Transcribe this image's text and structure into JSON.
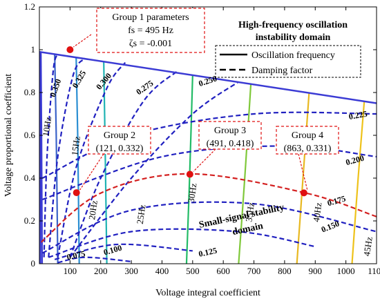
{
  "chart_data": {
    "type": "line",
    "title": "",
    "xlabel": "Voltage integral coefficient",
    "ylabel": "Voltage proportional coefficient",
    "xlim": [
      0,
      1100
    ],
    "ylim": [
      0,
      1.2
    ],
    "xticks": [
      "100",
      "200",
      "300",
      "400",
      "500",
      "600",
      "700",
      "800",
      "900",
      "1000",
      "1100"
    ],
    "yticks": [
      "0",
      "0.2",
      "0.4",
      "0.6",
      "0.8",
      "1",
      "1.2"
    ],
    "grid": false,
    "legend": {
      "position": "top-right",
      "title_line1": "High-frequency oscillation",
      "title_line2": "instability domain",
      "items": [
        {
          "label": "Oscillation frequency",
          "style": "solid"
        },
        {
          "label": "Damping factor",
          "style": "dashed"
        }
      ]
    },
    "boundary": {
      "x": [
        0,
        1100
      ],
      "y": [
        0.99,
        0.75
      ],
      "color": "#3b3bd4"
    },
    "frequency_contours": [
      {
        "label": "10Hz",
        "color": "#3b3bd4",
        "points": [
          [
            5,
            0.99
          ],
          [
            7,
            0.6
          ],
          [
            9,
            0.0
          ]
        ],
        "label_at": [
          28,
          0.64
        ],
        "label_rotate": -82
      },
      {
        "label": "15Hz",
        "color": "#3a62c8",
        "points": [
          [
            50,
            0.98
          ],
          [
            55,
            0.6
          ],
          [
            60,
            0.0
          ]
        ],
        "label_at": [
          122,
          0.55
        ],
        "label_rotate": -82
      },
      {
        "label": "20Hz",
        "color": "#2a8ed2",
        "points": [
          [
            120,
            0.965
          ],
          [
            125,
            0.6
          ],
          [
            130,
            0.0
          ]
        ],
        "label_at": [
          178,
          0.25
        ],
        "label_rotate": -82
      },
      {
        "label": "25Hz",
        "color": "#1fb3b3",
        "points": [
          [
            210,
            0.945
          ],
          [
            215,
            0.5
          ],
          [
            220,
            0.0
          ]
        ],
        "label_at": [
          335,
          0.23
        ],
        "label_rotate": -82
      },
      {
        "label": "30Hz",
        "color": "#22bb66",
        "points": [
          [
            500,
            0.88
          ],
          [
            490,
            0.4
          ],
          [
            480,
            0.0
          ]
        ],
        "label_at": [
          502,
          0.33
        ],
        "label_rotate": -82
      },
      {
        "label": "35Hz",
        "color": "#7fc83a",
        "points": [
          [
            690,
            0.84
          ],
          [
            670,
            0.4
          ],
          [
            650,
            0.0
          ]
        ],
        "label_at": [
          690,
          0.24
        ],
        "label_rotate": -82
      },
      {
        "label": "40Hz",
        "color": "#e8b820",
        "points": [
          [
            880,
            0.8
          ],
          [
            860,
            0.4
          ],
          [
            840,
            0.0
          ]
        ],
        "label_at": [
          910,
          0.24
        ],
        "label_rotate": -82
      },
      {
        "label": "45Hz",
        "color": "#eec21a",
        "points": [
          [
            1060,
            0.76
          ],
          [
            1040,
            0.4
          ],
          [
            1020,
            0.0
          ]
        ],
        "label_at": [
          1075,
          0.08
        ],
        "label_rotate": -82
      }
    ],
    "damping_contours": [
      {
        "label": "0.350",
        "color": "#2020c0",
        "points": [
          [
            15,
            0.03
          ],
          [
            25,
            0.5
          ],
          [
            45,
            0.9
          ],
          [
            60,
            0.98
          ]
        ],
        "label_at": [
          55,
          0.82
        ],
        "label_rotate": -70
      },
      {
        "label": "0.325",
        "color": "#2020c0",
        "points": [
          [
            30,
            0.03
          ],
          [
            60,
            0.5
          ],
          [
            110,
            0.88
          ],
          [
            150,
            0.96
          ]
        ],
        "label_at": [
          132,
          0.86
        ],
        "label_rotate": -60
      },
      {
        "label": "0.300",
        "color": "#2020c0",
        "points": [
          [
            60,
            0.03
          ],
          [
            120,
            0.45
          ],
          [
            220,
            0.82
          ],
          [
            280,
            0.94
          ]
        ],
        "label_at": [
          212,
          0.85
        ],
        "label_rotate": -50
      },
      {
        "label": "0.275",
        "color": "#2020c0",
        "points": [
          [
            100,
            0.03
          ],
          [
            200,
            0.4
          ],
          [
            340,
            0.76
          ],
          [
            450,
            0.9
          ]
        ],
        "label_at": [
          345,
          0.82
        ],
        "label_rotate": -35
      },
      {
        "label": "0.250",
        "color": "#2020c0",
        "points": [
          [
            100,
            0.03
          ],
          [
            300,
            0.4
          ],
          [
            500,
            0.7
          ],
          [
            650,
            0.85
          ]
        ],
        "label_at": [
          550,
          0.85
        ],
        "label_rotate": -18
      },
      {
        "label": "0.225",
        "color": "#2020c0",
        "points": [
          [
            10,
            0.4
          ],
          [
            300,
            0.6
          ],
          [
            700,
            0.7
          ],
          [
            1100,
            0.7
          ]
        ],
        "label_at": [
          1040,
          0.69
        ],
        "label_rotate": -10
      },
      {
        "label": "0.200",
        "color": "#2020c0",
        "points": [
          [
            10,
            0.3
          ],
          [
            400,
            0.5
          ],
          [
            800,
            0.55
          ],
          [
            1100,
            0.5
          ]
        ],
        "label_at": [
          1030,
          0.48
        ],
        "label_rotate": -15
      },
      {
        "label": "0.175",
        "color": "#d42020",
        "points": [
          [
            5,
            0.1
          ],
          [
            200,
            0.33
          ],
          [
            490,
            0.42
          ],
          [
            870,
            0.33
          ],
          [
            1100,
            0.22
          ]
        ],
        "label_at": [
          970,
          0.29
        ],
        "label_rotate": -16
      },
      {
        "label": "0.150",
        "color": "#2020c0",
        "points": [
          [
            10,
            0.05
          ],
          [
            300,
            0.25
          ],
          [
            700,
            0.28
          ],
          [
            1100,
            0.15
          ]
        ],
        "label_at": [
          950,
          0.17
        ],
        "label_rotate": -22
      },
      {
        "label": "0.125",
        "color": "#2020c0",
        "points": [
          [
            30,
            0.03
          ],
          [
            300,
            0.15
          ],
          [
            650,
            0.15
          ],
          [
            900,
            0.08
          ]
        ],
        "label_at": [
          550,
          0.05
        ],
        "label_rotate": -12
      },
      {
        "label": "0.100",
        "color": "#2020c0",
        "points": [
          [
            50,
            0.02
          ],
          [
            250,
            0.09
          ],
          [
            500,
            0.06
          ]
        ],
        "label_at": [
          240,
          0.06
        ],
        "label_rotate": -16
      },
      {
        "label": "0.075",
        "color": "#2020c0",
        "points": [
          [
            60,
            0.005
          ],
          [
            150,
            0.03
          ],
          [
            300,
            0.01
          ]
        ],
        "label_at": [
          120,
          0.035
        ],
        "label_rotate": -12
      }
    ],
    "points": [
      {
        "name": "Group 1",
        "x": 100,
        "y": 1.0
      },
      {
        "name": "Group 2",
        "x": 121,
        "y": 0.332
      },
      {
        "name": "Group 3",
        "x": 491,
        "y": 0.418
      },
      {
        "name": "Group 4",
        "x": 863,
        "y": 0.331
      }
    ],
    "annotations": [
      {
        "lines": [
          "Group 1 parameters",
          "fs = 495 Hz",
          "ζs = -0.001"
        ],
        "point": 0
      },
      {
        "lines": [
          "Group 2",
          "(121, 0.332)"
        ],
        "point": 1
      },
      {
        "lines": [
          "Group 3",
          "(491, 0.418)"
        ],
        "point": 2
      },
      {
        "lines": [
          "Group 4",
          "(863, 0.331)"
        ],
        "point": 3
      }
    ],
    "region_label": [
      "Small-signal stability",
      "domain"
    ]
  }
}
